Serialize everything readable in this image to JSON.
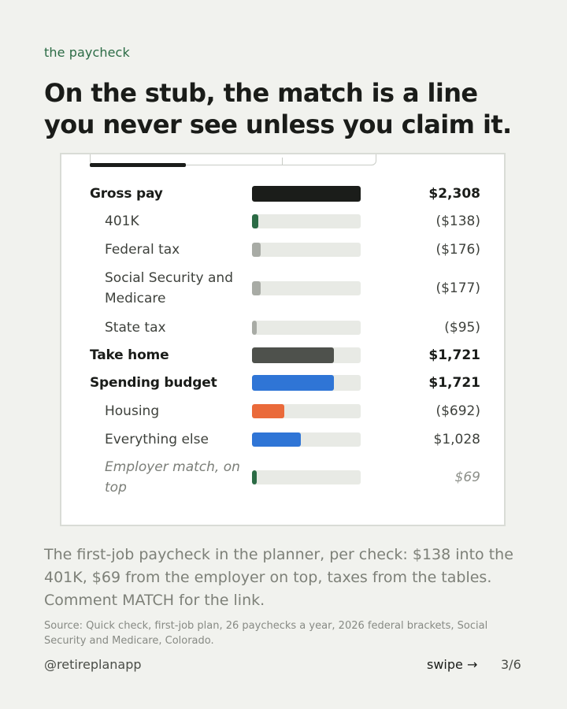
{
  "eyebrow": "the paycheck",
  "headline": "On the stub, the match is a line you never see unless you claim it.",
  "colors": {
    "background": "#f1f2ee",
    "accent_green": "#2b6b45",
    "track": "#e8eae5"
  },
  "rows": [
    {
      "label": "Gross pay",
      "amount": "$2,308",
      "style": "main",
      "fill_fraction": 1.0,
      "color": "#1b1d1a"
    },
    {
      "label": "401K",
      "amount": "($138)",
      "style": "sub",
      "fill_fraction": 0.06,
      "color": "#2b6b45"
    },
    {
      "label": "Federal tax",
      "amount": "($176)",
      "style": "sub",
      "fill_fraction": 0.08,
      "color": "#a8aba5"
    },
    {
      "label": "Social Security and Medicare",
      "amount": "($177)",
      "style": "sub",
      "fill_fraction": 0.08,
      "color": "#a8aba5"
    },
    {
      "label": "State tax",
      "amount": "($95)",
      "style": "sub",
      "fill_fraction": 0.04,
      "color": "#a8aba5"
    },
    {
      "label": "Take home",
      "amount": "$1,721",
      "style": "main",
      "fill_fraction": 0.75,
      "color": "#4e514c"
    },
    {
      "label": "Spending budget",
      "amount": "$1,721",
      "style": "main",
      "fill_fraction": 0.75,
      "color": "#2f75d6"
    },
    {
      "label": "Housing",
      "amount": "($692)",
      "style": "sub",
      "fill_fraction": 0.3,
      "color": "#ea6a3a"
    },
    {
      "label": "Everything else",
      "amount": "$1,028",
      "style": "sub",
      "fill_fraction": 0.45,
      "color": "#2f75d6"
    },
    {
      "label": "Employer match, on top",
      "amount": "$69",
      "style": "italic",
      "fill_fraction": 0.03,
      "color": "#2b6b45"
    }
  ],
  "caption": "The first-job paycheck in the planner, per check: $138 into the 401K, $69 from the employer on top, taxes from the tables. Comment MATCH for the link.",
  "source": "Source: Quick check, first-job plan, 26 paychecks a year, 2026 federal brackets, Social Security and Medicare, Colorado.",
  "footer": {
    "handle": "@retireplanapp",
    "swipe": "swipe →",
    "page": "3/6"
  }
}
